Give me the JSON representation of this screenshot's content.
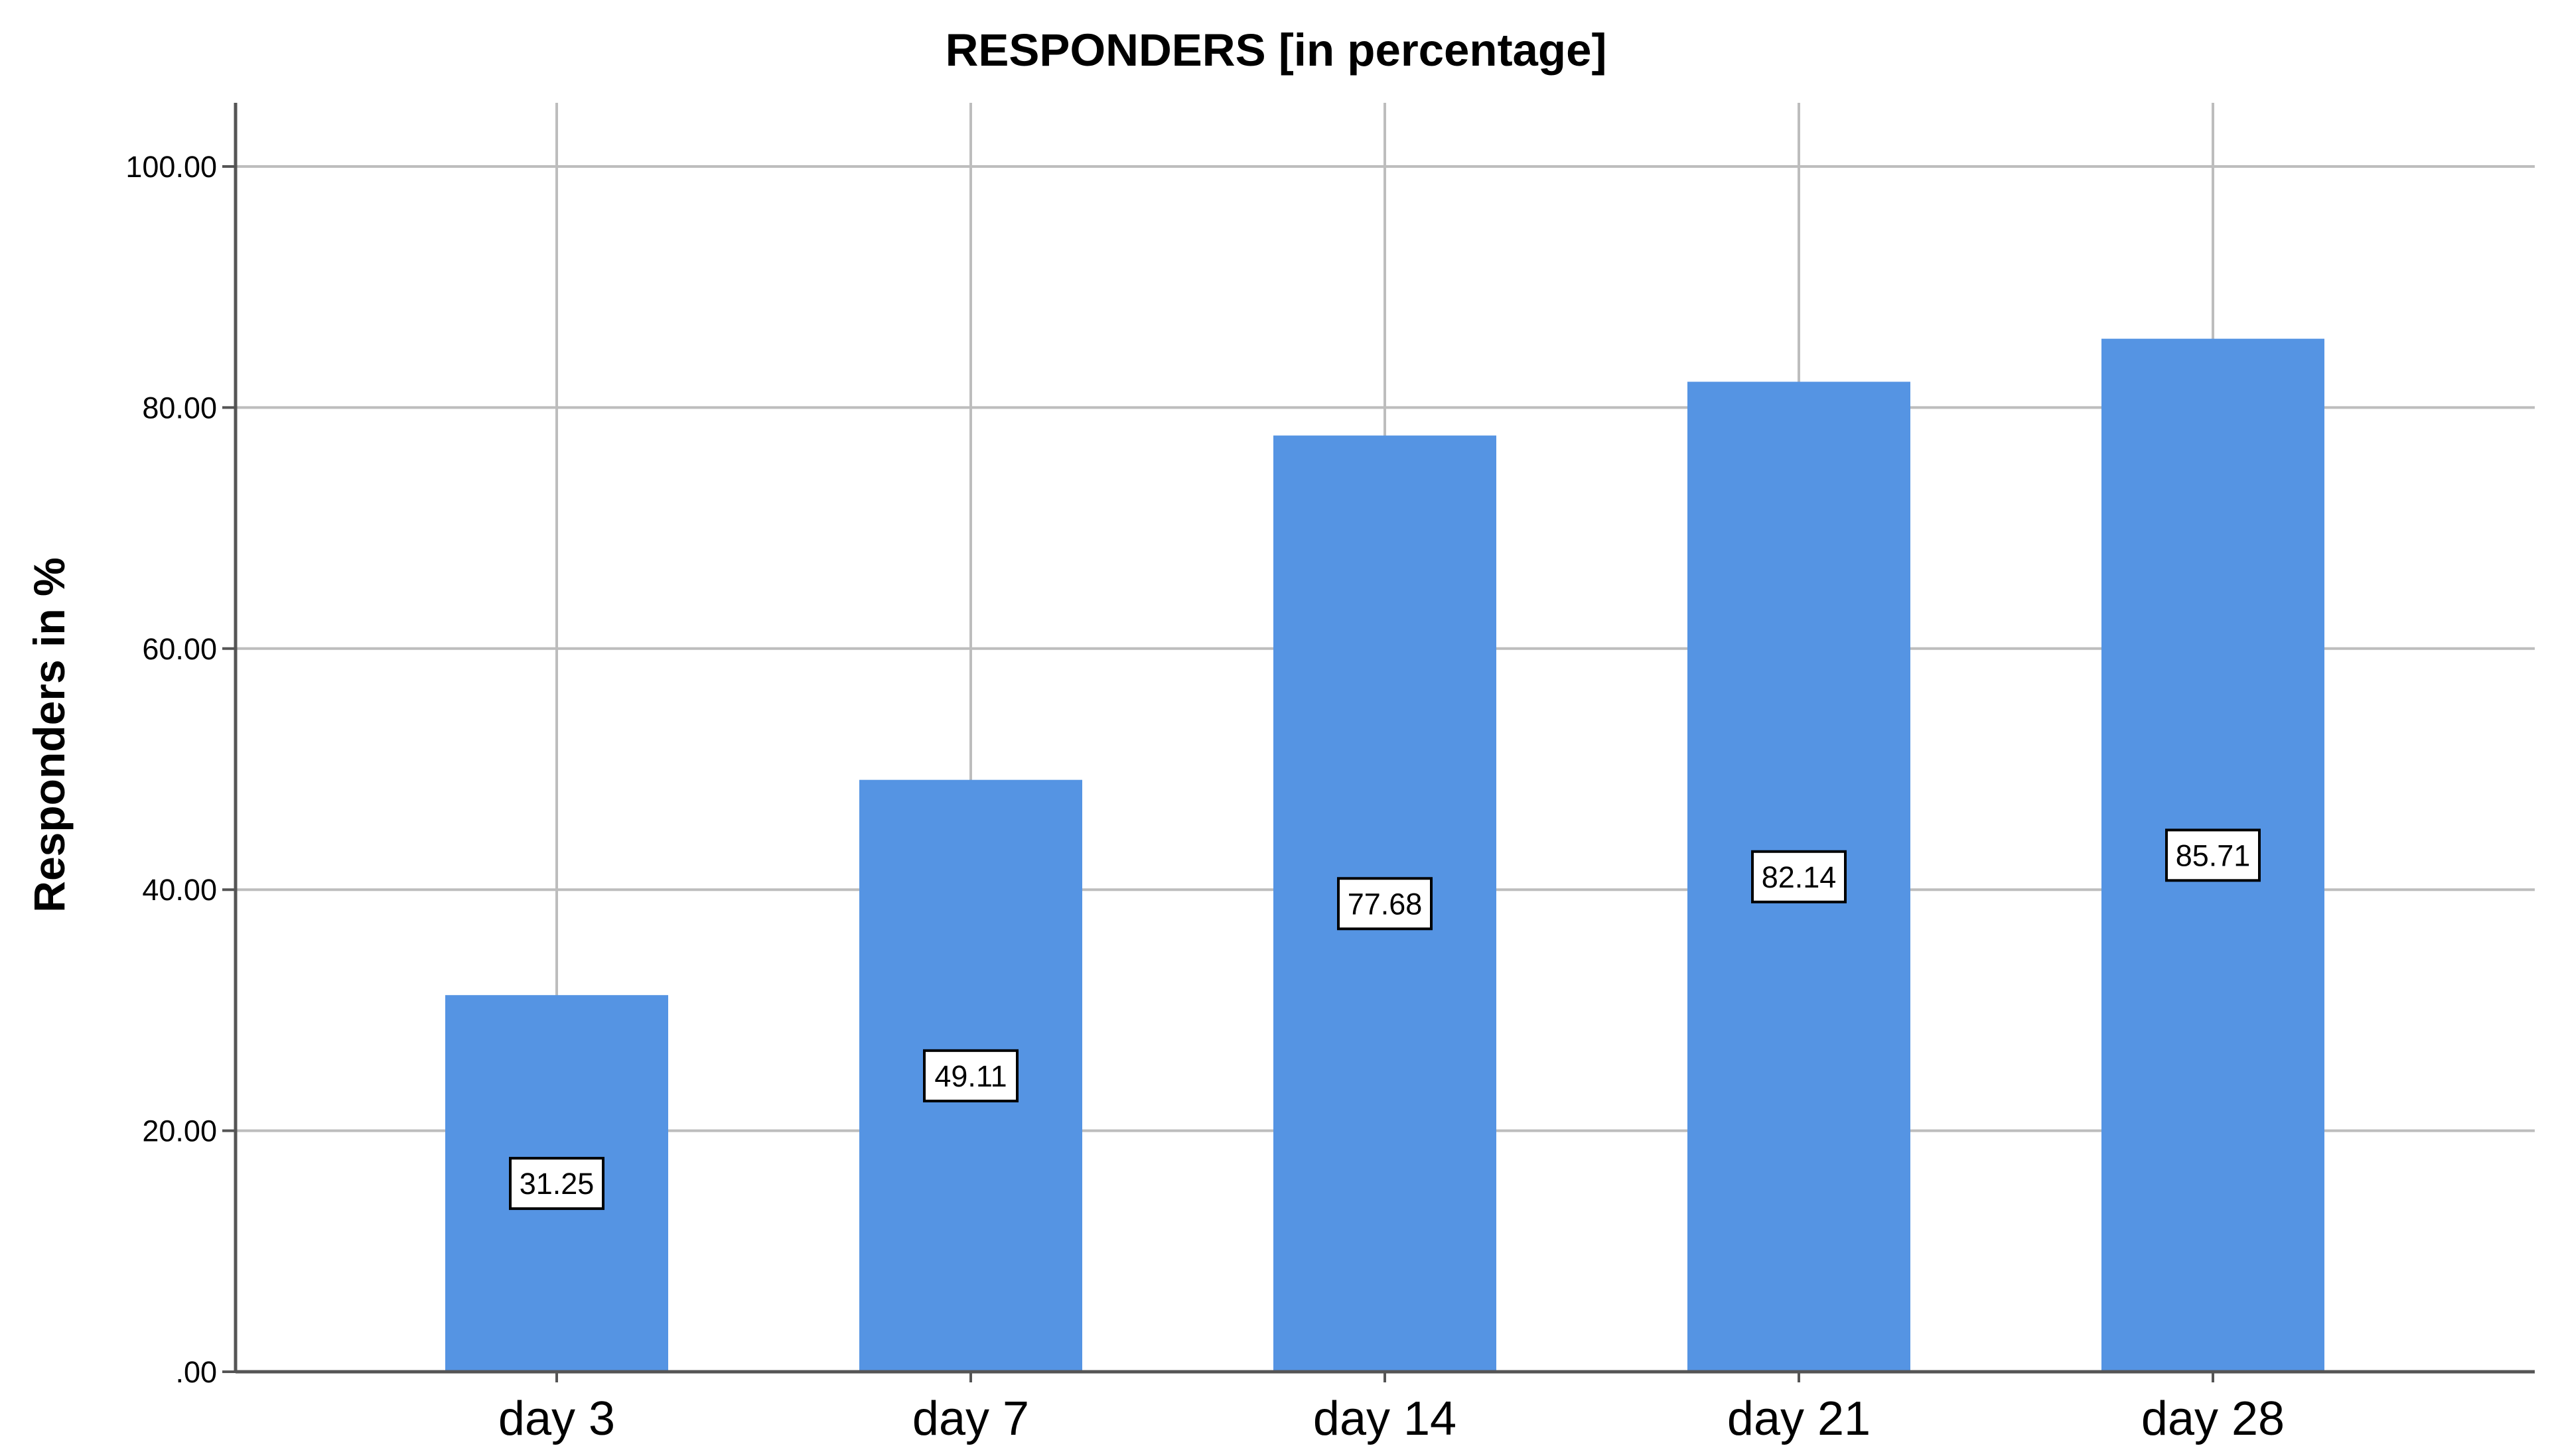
{
  "chart_data": {
    "type": "bar",
    "title": "RESPONDERS [in percentage]",
    "xlabel": "",
    "ylabel": "Responders in %",
    "categories": [
      "day 3",
      "day 7",
      "day 14",
      "day 21",
      "day 28"
    ],
    "values": [
      31.25,
      49.11,
      77.68,
      82.14,
      85.71
    ],
    "data_labels": [
      "31.25",
      "49.11",
      "77.68",
      "82.14",
      "85.71"
    ],
    "yticks": [
      0,
      20,
      40,
      60,
      80,
      100
    ],
    "ytick_labels": [
      ".00",
      "20.00",
      "40.00",
      "60.00",
      "80.00",
      "100.00"
    ],
    "ylim": [
      0,
      100
    ],
    "grid": true,
    "legend": "none",
    "bar_color": "#5594e3",
    "grid_color": "#bdbdbd"
  }
}
